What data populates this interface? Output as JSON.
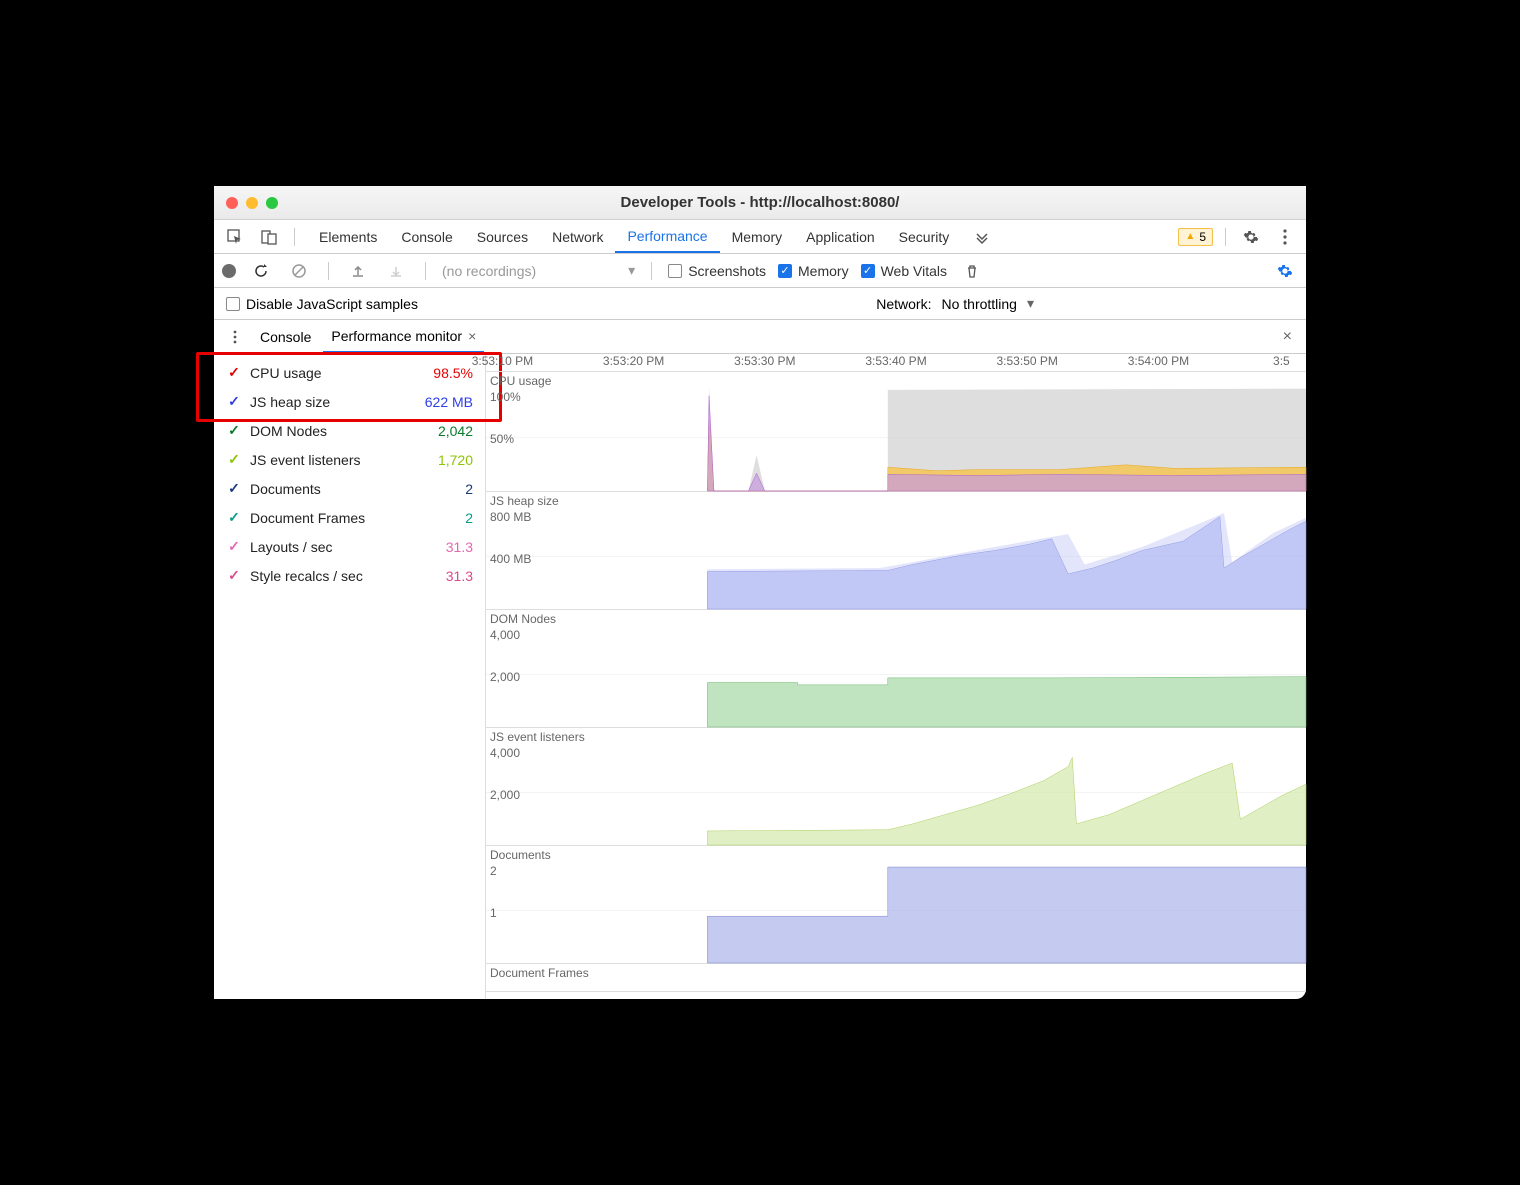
{
  "window_title": "Developer Tools - http://localhost:8080/",
  "main_tabs": [
    "Elements",
    "Console",
    "Sources",
    "Network",
    "Performance",
    "Memory",
    "Application",
    "Security"
  ],
  "main_tab_active": "Performance",
  "warnings_count": "5",
  "perf_toolbar": {
    "no_recordings": "(no recordings)",
    "screenshots_label": "Screenshots",
    "screenshots_checked": false,
    "memory_label": "Memory",
    "memory_checked": true,
    "webvitals_label": "Web Vitals",
    "webvitals_checked": true
  },
  "options_bar": {
    "disable_js_label": "Disable JavaScript samples",
    "network_label": "Network:",
    "network_value": "No throttling"
  },
  "drawer": {
    "tabs": [
      "Console",
      "Performance monitor"
    ],
    "active": "Performance monitor"
  },
  "metrics": [
    {
      "label": "CPU usage",
      "value": "98.5%",
      "color": "#e60000",
      "check": "#e60000"
    },
    {
      "label": "JS heap size",
      "value": "622 MB",
      "color": "#2f3ee6",
      "check": "#2f3ee6"
    },
    {
      "label": "DOM Nodes",
      "value": "2,042",
      "color": "#0a7a2a",
      "check": "#0a7a2a"
    },
    {
      "label": "JS event listeners",
      "value": "1,720",
      "color": "#8bc500",
      "check": "#8bc500"
    },
    {
      "label": "Documents",
      "value": "2",
      "color": "#1a3a7a",
      "check": "#1a3a7a"
    },
    {
      "label": "Document Frames",
      "value": "2",
      "color": "#0a9a8a",
      "check": "#0a9a8a"
    },
    {
      "label": "Layouts / sec",
      "value": "31.3",
      "color": "#e667b0",
      "check": "#e667b0"
    },
    {
      "label": "Style recalcs / sec",
      "value": "31.3",
      "color": "#d94a8c",
      "check": "#d94a8c"
    }
  ],
  "timeline": {
    "labels": [
      "3:53:10 PM",
      "3:53:20 PM",
      "3:53:30 PM",
      "3:53:40 PM",
      "3:53:50 PM",
      "3:54:00 PM",
      "3:5"
    ],
    "positions": [
      2,
      18,
      34,
      50,
      66,
      82,
      97
    ]
  },
  "charts": [
    {
      "title": "CPU usage",
      "height": 120,
      "ylabels": [
        {
          "text": "100%",
          "y": 18
        },
        {
          "text": "50%",
          "y": 60
        }
      ],
      "bg": "#ffffff",
      "series": [
        {
          "fill": "#d0d0d0",
          "opacity": 0.7,
          "points": [
            [
              27,
              100
            ],
            [
              27.2,
              12
            ],
            [
              27.8,
              100
            ],
            [
              32,
              100
            ],
            [
              33,
              70
            ],
            [
              34,
              100
            ],
            [
              49,
              100
            ],
            [
              49,
              15
            ],
            [
              100,
              14
            ],
            [
              100,
              100
            ]
          ]
        },
        {
          "fill": "#f5c34a",
          "opacity": 0.8,
          "stroke": "#e8a820",
          "points": [
            [
              27,
              100
            ],
            [
              27.2,
              35
            ],
            [
              27.8,
              100
            ],
            [
              49,
              100
            ],
            [
              49,
              80
            ],
            [
              55,
              83
            ],
            [
              60,
              82
            ],
            [
              70,
              82
            ],
            [
              78,
              78
            ],
            [
              84,
              81
            ],
            [
              100,
              80
            ],
            [
              100,
              100
            ]
          ]
        },
        {
          "fill": "#c89ae0",
          "opacity": 0.7,
          "stroke": "#b060d0",
          "points": [
            [
              27,
              100
            ],
            [
              27.2,
              20
            ],
            [
              27.8,
              100
            ],
            [
              32,
              100
            ],
            [
              33,
              85
            ],
            [
              34,
              100
            ],
            [
              49,
              100
            ],
            [
              49,
              86
            ],
            [
              60,
              87
            ],
            [
              70,
              86
            ],
            [
              84,
              87
            ],
            [
              100,
              86
            ],
            [
              100,
              100
            ]
          ]
        }
      ]
    },
    {
      "title": "JS heap size",
      "height": 118,
      "ylabels": [
        {
          "text": "800 MB",
          "y": 18
        },
        {
          "text": "400 MB",
          "y": 60
        }
      ],
      "bg": "#ffffff",
      "series": [
        {
          "fill": "#9aa4ee",
          "opacity": 0.55,
          "stroke": "#7a85e0",
          "points": [
            [
              27,
              100
            ],
            [
              27,
              68
            ],
            [
              48,
              67
            ],
            [
              49,
              67
            ],
            [
              52,
              62
            ],
            [
              55,
              58
            ],
            [
              58,
              54
            ],
            [
              62,
              50
            ],
            [
              66,
              45
            ],
            [
              69,
              40
            ],
            [
              71,
              70
            ],
            [
              74,
              65
            ],
            [
              77,
              58
            ],
            [
              80,
              50
            ],
            [
              85,
              42
            ],
            [
              88,
              28
            ],
            [
              89.5,
              21
            ],
            [
              90,
              65
            ],
            [
              92,
              56
            ],
            [
              94,
              48
            ],
            [
              96,
              40
            ],
            [
              98,
              32
            ],
            [
              100,
              25
            ],
            [
              100,
              100
            ]
          ]
        },
        {
          "fill": "#b8c0f5",
          "opacity": 0.4,
          "points": [
            [
              27,
              100
            ],
            [
              27,
              66
            ],
            [
              48,
              65
            ],
            [
              52,
              60
            ],
            [
              58,
              52
            ],
            [
              66,
              42
            ],
            [
              71,
              36
            ],
            [
              73,
              62
            ],
            [
              80,
              47
            ],
            [
              88,
              24
            ],
            [
              90,
              18
            ],
            [
              91,
              60
            ],
            [
              96,
              35
            ],
            [
              100,
              22
            ],
            [
              100,
              100
            ]
          ]
        }
      ]
    },
    {
      "title": "DOM Nodes",
      "height": 118,
      "ylabels": [
        {
          "text": "4,000",
          "y": 18
        },
        {
          "text": "2,000",
          "y": 60
        }
      ],
      "bg": "#ffffff",
      "series": [
        {
          "fill": "#a5d8a5",
          "opacity": 0.7,
          "stroke": "#6bb86b",
          "points": [
            [
              27,
              100
            ],
            [
              27,
              62
            ],
            [
              38,
              62
            ],
            [
              38,
              64
            ],
            [
              42,
              64
            ],
            [
              42,
              64
            ],
            [
              49,
              64
            ],
            [
              49,
              58
            ],
            [
              70,
              58
            ],
            [
              70,
              58
            ],
            [
              100,
              57
            ],
            [
              100,
              100
            ]
          ]
        }
      ]
    },
    {
      "title": "JS event listeners",
      "height": 118,
      "ylabels": [
        {
          "text": "4,000",
          "y": 18
        },
        {
          "text": "2,000",
          "y": 60
        }
      ],
      "bg": "#ffffff",
      "series": [
        {
          "fill": "#d5eab0",
          "opacity": 0.75,
          "stroke": "#b0d060",
          "points": [
            [
              27,
              100
            ],
            [
              27,
              88
            ],
            [
              49,
              87
            ],
            [
              49,
              87
            ],
            [
              52,
              82
            ],
            [
              56,
              74
            ],
            [
              60,
              66
            ],
            [
              64,
              56
            ],
            [
              68,
              45
            ],
            [
              71,
              33
            ],
            [
              71.5,
              25
            ],
            [
              72,
              82
            ],
            [
              76,
              74
            ],
            [
              80,
              62
            ],
            [
              84,
              50
            ],
            [
              88,
              38
            ],
            [
              91,
              30
            ],
            [
              92,
              78
            ],
            [
              94,
              70
            ],
            [
              97,
              58
            ],
            [
              100,
              48
            ],
            [
              100,
              100
            ]
          ]
        }
      ]
    },
    {
      "title": "Documents",
      "height": 118,
      "ylabels": [
        {
          "text": "2",
          "y": 18
        },
        {
          "text": "1",
          "y": 60
        }
      ],
      "bg": "#ffffff",
      "series": [
        {
          "fill": "#a6aee8",
          "opacity": 0.65,
          "stroke": "#7a85d0",
          "points": [
            [
              27,
              100
            ],
            [
              27,
              60
            ],
            [
              49,
              60
            ],
            [
              49,
              18
            ],
            [
              100,
              18
            ],
            [
              100,
              100
            ]
          ]
        }
      ]
    },
    {
      "title": "Document Frames",
      "height": 28,
      "ylabels": [],
      "bg": "#ffffff",
      "series": []
    }
  ]
}
